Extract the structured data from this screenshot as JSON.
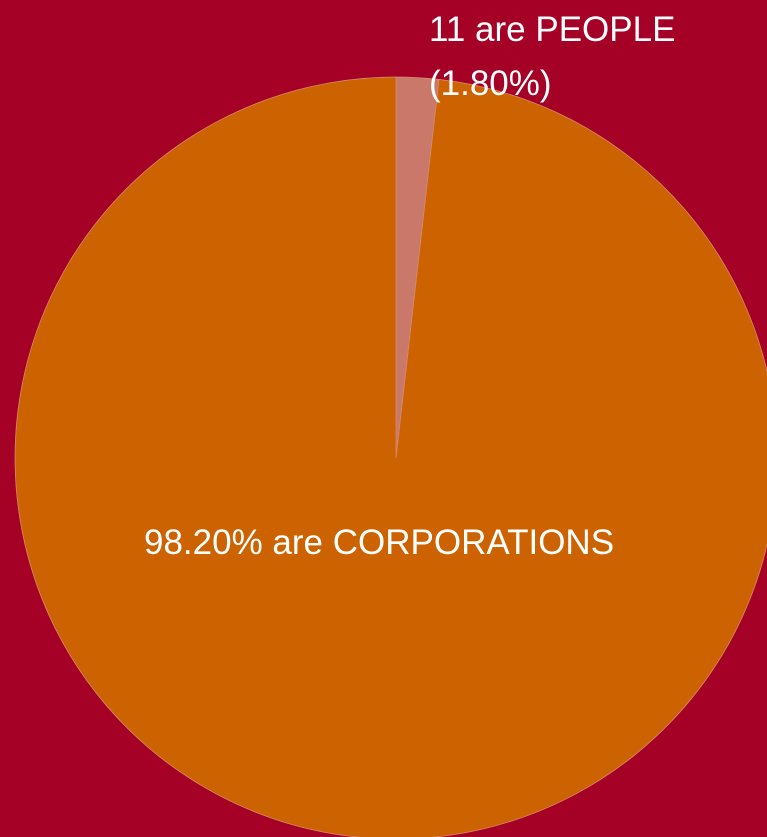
{
  "colors": {
    "background": "#a50026",
    "corporations": "#cc6300",
    "people": "#c9786a"
  },
  "chart_data": {
    "type": "pie",
    "start_angle_deg": 0,
    "direction": "clockwise",
    "grid": false,
    "legend": "none",
    "slices": [
      {
        "key": "people",
        "value": 1.8,
        "label_lines": [
          "11  are PEOPLE",
          "(1.80%)"
        ],
        "color": "#c9786a"
      },
      {
        "key": "corporations",
        "value": 98.2,
        "label_lines": [
          "98.20% are CORPORATIONS"
        ],
        "color": "#cc6300"
      }
    ]
  }
}
